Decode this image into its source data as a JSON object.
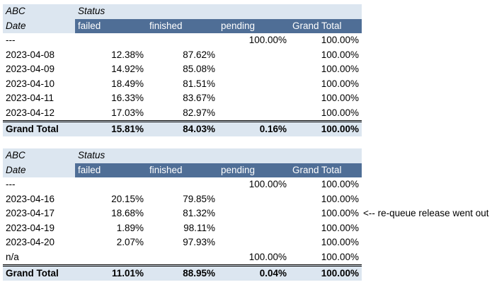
{
  "tables": [
    {
      "corner_top": "ABC",
      "column_field": "Status",
      "corner_bottom": "Date",
      "columns": [
        "failed",
        "finished",
        "pending",
        "Grand Total"
      ],
      "rows": [
        {
          "label": "---",
          "values": [
            "",
            "",
            "100.00%",
            "100.00%"
          ]
        },
        {
          "label": "2023-04-08",
          "values": [
            "12.38%",
            "87.62%",
            "",
            "100.00%"
          ]
        },
        {
          "label": "2023-04-09",
          "values": [
            "14.92%",
            "85.08%",
            "",
            "100.00%"
          ]
        },
        {
          "label": "2023-04-10",
          "values": [
            "18.49%",
            "81.51%",
            "",
            "100.00%"
          ]
        },
        {
          "label": "2023-04-11",
          "values": [
            "16.33%",
            "83.67%",
            "",
            "100.00%"
          ]
        },
        {
          "label": "2023-04-12",
          "values": [
            "17.03%",
            "82.97%",
            "",
            "100.00%"
          ]
        }
      ],
      "total": {
        "label": "Grand Total",
        "values": [
          "15.81%",
          "84.03%",
          "0.16%",
          "100.00%"
        ]
      }
    },
    {
      "corner_top": "ABC",
      "column_field": "Status",
      "corner_bottom": "Date",
      "columns": [
        "failed",
        "finished",
        "pending",
        "Grand Total"
      ],
      "rows": [
        {
          "label": "---",
          "values": [
            "",
            "",
            "100.00%",
            "100.00%"
          ]
        },
        {
          "label": "2023-04-16",
          "values": [
            "20.15%",
            "79.85%",
            "",
            "100.00%"
          ]
        },
        {
          "label": "2023-04-17",
          "values": [
            "18.68%",
            "81.32%",
            "",
            "100.00%"
          ]
        },
        {
          "label": "2023-04-19",
          "values": [
            "1.89%",
            "98.11%",
            "",
            "100.00%"
          ]
        },
        {
          "label": "2023-04-20",
          "values": [
            "2.07%",
            "97.93%",
            "",
            "100.00%"
          ]
        },
        {
          "label": "n/a",
          "values": [
            "",
            "",
            "100.00%",
            "100.00%"
          ]
        }
      ],
      "total": {
        "label": "Grand Total",
        "values": [
          "11.01%",
          "88.95%",
          "0.04%",
          "100.00%"
        ]
      }
    }
  ],
  "annotation": "<-- re-queue release went out",
  "colors": {
    "header_dark": "#4f6e96",
    "header_light": "#dce6f0"
  }
}
